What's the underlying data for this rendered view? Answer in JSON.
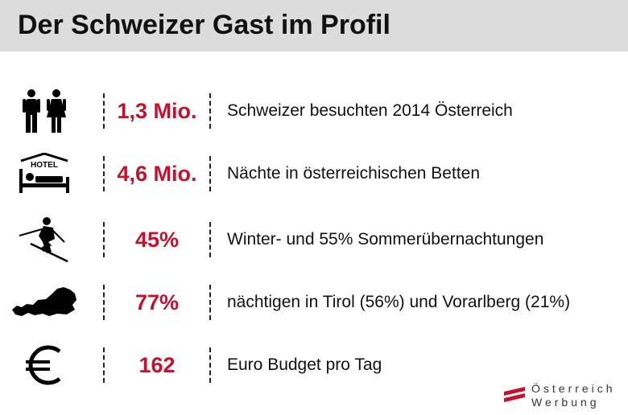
{
  "header": {
    "title": "Der Schweizer Gast im Profil"
  },
  "accent_color": "#c8102e",
  "rows": [
    {
      "icon": "people-icon",
      "value": "1,3 Mio.",
      "text": "Schweizer besuchten 2014 Österreich"
    },
    {
      "icon": "hotel-bed-icon",
      "icon_text": "HOTEL",
      "value": "4,6 Mio.",
      "text": "Nächte in österreichischen Betten"
    },
    {
      "icon": "skier-icon",
      "value": "45%",
      "text": "Winter- und 55% Sommerübernachtungen"
    },
    {
      "icon": "austria-map-icon",
      "value": "77%",
      "text": "nächtigen in Tirol (56%) und Vorarlberg (21%)"
    },
    {
      "icon": "euro-icon",
      "value": "162",
      "text": "Euro Budget pro Tag"
    }
  ],
  "logo": {
    "line1": "Österreich",
    "line2": "Werbung"
  }
}
